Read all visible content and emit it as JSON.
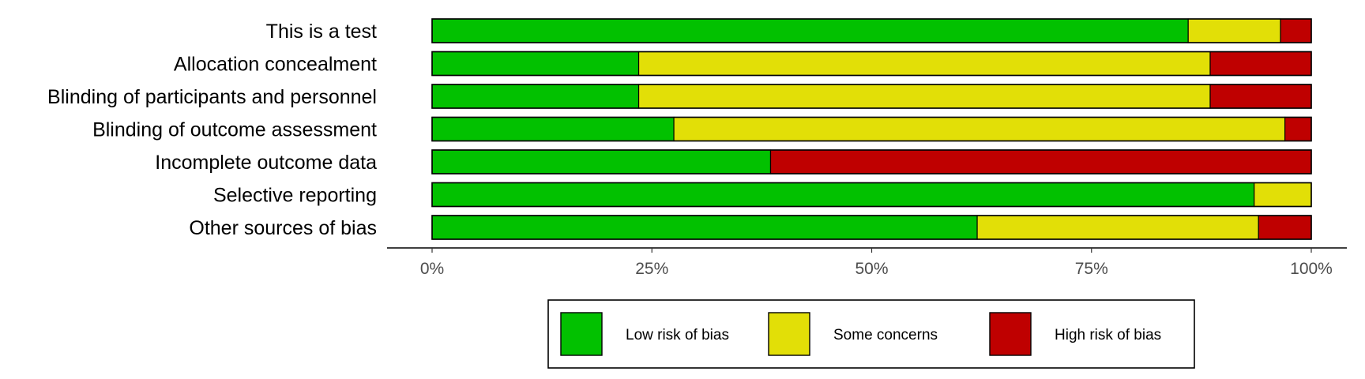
{
  "chart_data": {
    "type": "bar",
    "orientation": "horizontal",
    "stacked": true,
    "categories": [
      "This is a test",
      "Allocation concealment",
      "Blinding of participants and personnel",
      "Blinding of outcome assessment",
      "Incomplete outcome data",
      "Selective reporting",
      "Other sources of bias"
    ],
    "series": [
      {
        "name": "Low risk of bias",
        "color": "#02C100",
        "values": [
          86,
          23.5,
          23.5,
          27.5,
          38.5,
          93.5,
          62
        ]
      },
      {
        "name": "Some concerns",
        "color": "#E2DF07",
        "values": [
          10.5,
          65,
          65,
          69.5,
          0,
          6.5,
          32
        ]
      },
      {
        "name": "High risk of bias",
        "color": "#BF0000",
        "values": [
          3.5,
          11.5,
          11.5,
          3,
          61.5,
          0,
          6
        ]
      }
    ],
    "xlim": [
      0,
      100
    ],
    "x_ticks": [
      {
        "value": 0,
        "label": "0%"
      },
      {
        "value": 25,
        "label": "25%"
      },
      {
        "value": 50,
        "label": "50%"
      },
      {
        "value": 75,
        "label": "75%"
      },
      {
        "value": 100,
        "label": "100%"
      }
    ],
    "title": "",
    "xlabel": "",
    "ylabel": "",
    "grid": false,
    "legend_position": "bottom"
  }
}
